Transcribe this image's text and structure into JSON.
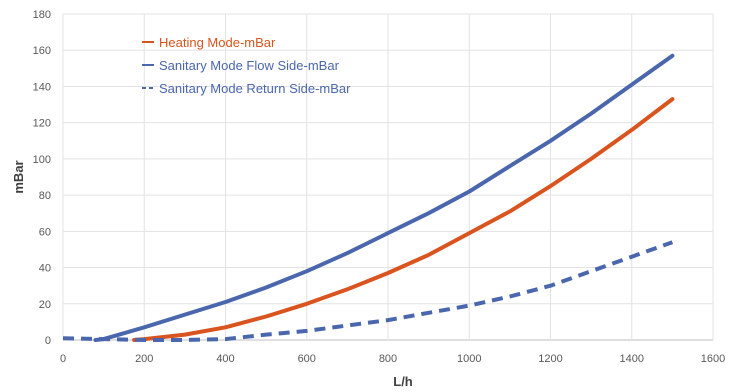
{
  "chart_data": {
    "type": "line",
    "title": "",
    "xlabel": "L/h",
    "ylabel": "mBar",
    "xlim": [
      0,
      1600
    ],
    "ylim": [
      0,
      180
    ],
    "xticks": [
      0,
      200,
      400,
      600,
      800,
      1000,
      1200,
      1400,
      1600
    ],
    "yticks": [
      0,
      20,
      40,
      60,
      80,
      100,
      120,
      140,
      160,
      180
    ],
    "grid": true,
    "legend_position": "top-left",
    "series": [
      {
        "name": "Heating Mode-mBar",
        "color": "#d9541e",
        "dash": "solid",
        "x": [
          175,
          200,
          300,
          400,
          500,
          600,
          700,
          800,
          900,
          1000,
          1100,
          1200,
          1300,
          1400,
          1500
        ],
        "y": [
          0,
          0.5,
          3,
          7,
          13,
          20,
          28,
          37,
          47,
          59,
          71,
          85,
          100,
          116,
          133
        ]
      },
      {
        "name": "Sanitary Mode Flow Side-mBar",
        "color": "#4a66ad",
        "dash": "solid",
        "x": [
          80,
          100,
          200,
          300,
          400,
          500,
          600,
          700,
          800,
          900,
          1000,
          1100,
          1200,
          1300,
          1400,
          1500
        ],
        "y": [
          0,
          0.5,
          7,
          14,
          21,
          29,
          38,
          48,
          59,
          70,
          82,
          96,
          110,
          125,
          141,
          157
        ]
      },
      {
        "name": "Sanitary Mode Return Side-mBar",
        "color": "#4a66ad",
        "dash": "dashed",
        "x": [
          0,
          100,
          200,
          300,
          400,
          500,
          600,
          700,
          800,
          900,
          1000,
          1100,
          1200,
          1300,
          1400,
          1500
        ],
        "y": [
          1,
          0.5,
          0,
          0,
          0.5,
          3,
          5,
          8,
          11,
          15,
          19,
          24,
          30,
          38,
          46,
          54
        ]
      }
    ]
  }
}
